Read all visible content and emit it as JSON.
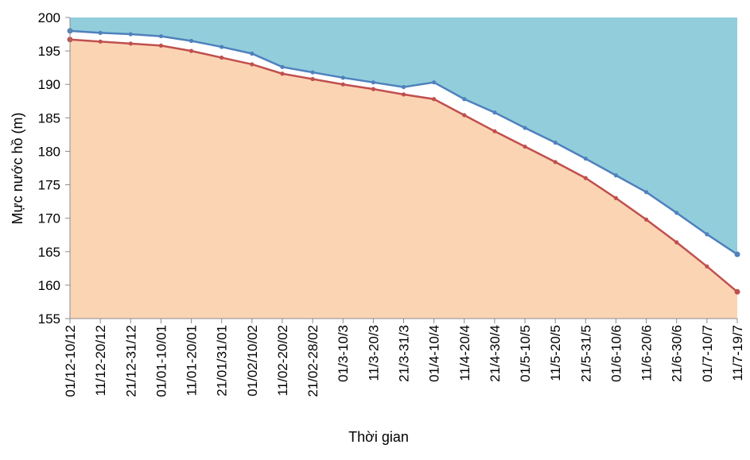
{
  "chart_data": {
    "type": "area",
    "xlabel": "Thời gian",
    "ylabel": "Mực nước hồ (m)",
    "ylim": [
      155,
      200
    ],
    "yticks": [
      155,
      160,
      165,
      170,
      175,
      180,
      185,
      190,
      195,
      200
    ],
    "grid": false,
    "legend": "none",
    "categories": [
      "01/12-10/12",
      "11/12-20/12",
      "21/12-31/12",
      "01/01-10/01",
      "11/01-20/01",
      "21/01/31/01",
      "01/02/10/02",
      "11/02-20/02",
      "21/02-28/02",
      "01/3-10/3",
      "11/3-20/3",
      "21/3-31/3",
      "01/4-10/4",
      "11/4-20/4",
      "21/4-30/4",
      "01/5-10/5",
      "11/5-20/5",
      "21/5-31/5",
      "01/6-10/6",
      "11/6-20/6",
      "21/6-30/6",
      "01/7-10/7",
      "11/7-19/7"
    ],
    "series": [
      {
        "color": "#4f81bd",
        "fill": "#92cddc",
        "values": [
          198.0,
          197.7,
          197.5,
          197.2,
          196.5,
          195.6,
          194.6,
          192.6,
          191.8,
          191.0,
          190.3,
          189.6,
          190.3,
          187.8,
          185.8,
          183.5,
          181.3,
          178.9,
          176.4,
          173.9,
          170.8,
          167.6,
          164.6
        ]
      },
      {
        "color": "#c0504d",
        "fill": "#fbd4b4",
        "values": [
          196.7,
          196.4,
          196.1,
          195.8,
          195.0,
          194.0,
          193.0,
          191.6,
          190.8,
          190.0,
          189.3,
          188.5,
          187.8,
          185.4,
          183.0,
          180.7,
          178.4,
          176.0,
          173.0,
          169.8,
          166.4,
          162.8,
          159.0
        ]
      }
    ],
    "colors": {
      "axis": "#8c8c8c",
      "tick_text": "#000000"
    }
  }
}
